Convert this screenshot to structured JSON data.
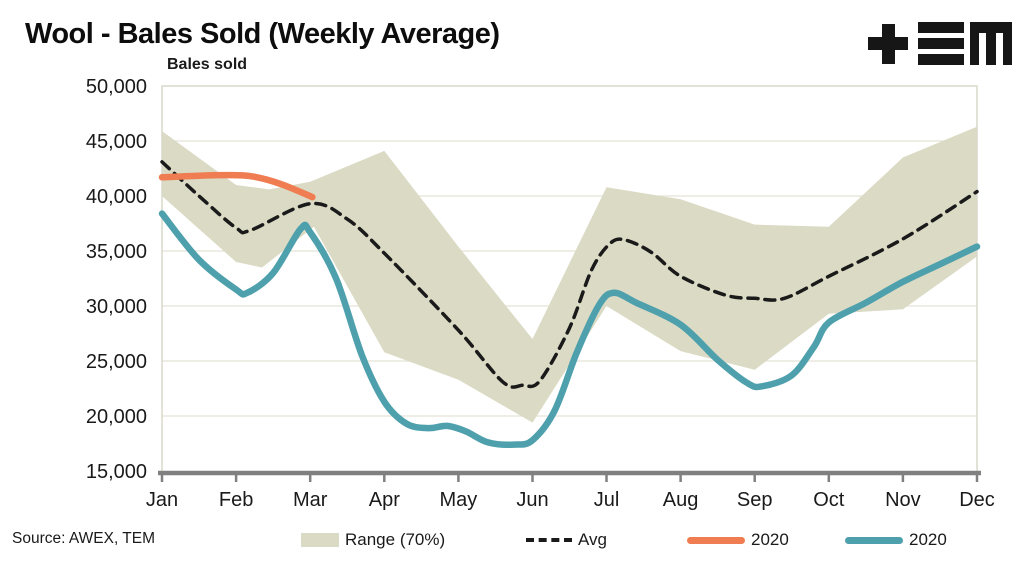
{
  "header": {
    "title": "Wool - Bales Sold (Weekly Average)",
    "logo_name": "TEM logo (plus, triple-bar, square-M)"
  },
  "source": "Source: AWEX, TEM",
  "colors": {
    "band_beige": "#DBDAC4",
    "teal_2020": "#4DA0AC",
    "orange_2020": "#EF7D51",
    "avg_black": "#1a1a1a",
    "gridline": "#E4E3D6",
    "plot_border": "#D9D8C9",
    "axis_gray": "#808080",
    "text": "#1a1a1a",
    "logo_black": "#161616"
  },
  "legend": [
    {
      "label": "Range (70%)",
      "marker": "band-swatch"
    },
    {
      "label": "Avg",
      "marker": "dashed-line"
    },
    {
      "label": "2020",
      "marker": "orange-line"
    },
    {
      "label": "2020",
      "marker": "teal-line"
    }
  ],
  "chart_data": {
    "type": "line",
    "title": "Wool - Bales Sold (Weekly Average)",
    "ylabel": "Bales sold",
    "xlabel": "",
    "categories": [
      "Jan",
      "Feb",
      "Mar",
      "Apr",
      "May",
      "Jun",
      "Jul",
      "Aug",
      "Sep",
      "Oct",
      "Nov",
      "Dec"
    ],
    "ylim": [
      15000,
      50000
    ],
    "ytick_values": [
      50000,
      45000,
      40000,
      35000,
      30000,
      25000,
      20000,
      15000
    ],
    "ytick_labels": [
      "50,000",
      "45,000",
      "40,000",
      "35,000",
      "30,000",
      "25,000",
      "20,000",
      "15,000"
    ],
    "grid": "horizontal",
    "legend_position": "bottom",
    "series": [
      {
        "name": "Range (70%)",
        "type": "band",
        "color": "#DBDAC4",
        "upper_monthly": [
          45900,
          41000,
          41300,
          44100,
          35400,
          27000,
          40800,
          39700,
          37400,
          37200,
          43500,
          46300
        ],
        "lower_monthly": [
          40000,
          34000,
          37100,
          25800,
          23300,
          19400,
          30000,
          25900,
          24200,
          29300,
          29700,
          34500
        ],
        "upper_points": [
          [
            0,
            45900
          ],
          [
            1,
            41000
          ],
          [
            1.45,
            40600
          ],
          [
            2,
            41300
          ],
          [
            3,
            44100
          ],
          [
            4,
            35400
          ],
          [
            5,
            27000
          ],
          [
            6,
            40800
          ],
          [
            7,
            39700
          ],
          [
            8,
            37400
          ],
          [
            9,
            37200
          ],
          [
            10,
            43500
          ],
          [
            11,
            46300
          ]
        ],
        "lower_points": [
          [
            0,
            40000
          ],
          [
            1,
            34000
          ],
          [
            1.35,
            33500
          ],
          [
            2.05,
            37200
          ],
          [
            3,
            25800
          ],
          [
            4,
            23300
          ],
          [
            5,
            19400
          ],
          [
            6,
            30000
          ],
          [
            7,
            25900
          ],
          [
            8,
            24200
          ],
          [
            9,
            29300
          ],
          [
            10,
            29700
          ],
          [
            11,
            34500
          ]
        ]
      },
      {
        "name": "Avg",
        "type": "line",
        "style": "dashed",
        "color": "#1a1a1a",
        "monthly": [
          43100,
          37100,
          39300,
          34800,
          27800,
          23000,
          35800,
          32700,
          30700,
          32700,
          36100,
          40400
        ],
        "points": [
          [
            0,
            43100
          ],
          [
            0.5,
            40000
          ],
          [
            1,
            37100
          ],
          [
            1.2,
            36900
          ],
          [
            2,
            39300
          ],
          [
            2.5,
            37900
          ],
          [
            3,
            34800
          ],
          [
            4,
            27800
          ],
          [
            4.6,
            23100
          ],
          [
            4.87,
            22800
          ],
          [
            5.1,
            23200
          ],
          [
            5.5,
            28000
          ],
          [
            5.8,
            33300
          ],
          [
            6.05,
            35700
          ],
          [
            6.25,
            36000
          ],
          [
            6.6,
            34900
          ],
          [
            7,
            32700
          ],
          [
            7.6,
            31000
          ],
          [
            8,
            30700
          ],
          [
            8.4,
            30700
          ],
          [
            9,
            32700
          ],
          [
            10,
            36100
          ],
          [
            11,
            40400
          ]
        ]
      },
      {
        "name": "2020",
        "type": "line",
        "style": "solid",
        "color": "#EF7D51",
        "months_covered": "Jan-Mar",
        "monthly": [
          41700,
          41900,
          39900
        ],
        "points": [
          [
            0,
            41700
          ],
          [
            0.5,
            41850
          ],
          [
            0.85,
            41900
          ],
          [
            1.2,
            41800
          ],
          [
            1.6,
            41100
          ],
          [
            2.03,
            39900
          ]
        ]
      },
      {
        "name": "2020",
        "type": "line",
        "style": "solid",
        "color": "#4DA0AC",
        "monthly": [
          38400,
          31500,
          36700,
          21300,
          19000,
          17800,
          31100,
          28300,
          22900,
          28500,
          32200,
          35400
        ],
        "points": [
          [
            0,
            38400
          ],
          [
            0.5,
            34200
          ],
          [
            1,
            31500
          ],
          [
            1.15,
            31200
          ],
          [
            1.5,
            33000
          ],
          [
            1.87,
            37000
          ],
          [
            2,
            36700
          ],
          [
            2.35,
            32500
          ],
          [
            2.7,
            25500
          ],
          [
            3,
            21300
          ],
          [
            3.3,
            19300
          ],
          [
            3.6,
            18900
          ],
          [
            3.85,
            19100
          ],
          [
            4.1,
            18600
          ],
          [
            4.4,
            17600
          ],
          [
            4.75,
            17400
          ],
          [
            5,
            17800
          ],
          [
            5.3,
            20500
          ],
          [
            5.6,
            25800
          ],
          [
            5.9,
            30100
          ],
          [
            6.1,
            31200
          ],
          [
            6.4,
            30300
          ],
          [
            7,
            28300
          ],
          [
            7.5,
            25100
          ],
          [
            7.9,
            23000
          ],
          [
            8.1,
            22700
          ],
          [
            8.5,
            23700
          ],
          [
            8.8,
            26300
          ],
          [
            9,
            28500
          ],
          [
            9.5,
            30300
          ],
          [
            10,
            32200
          ],
          [
            10.5,
            33800
          ],
          [
            11,
            35400
          ]
        ]
      }
    ]
  }
}
